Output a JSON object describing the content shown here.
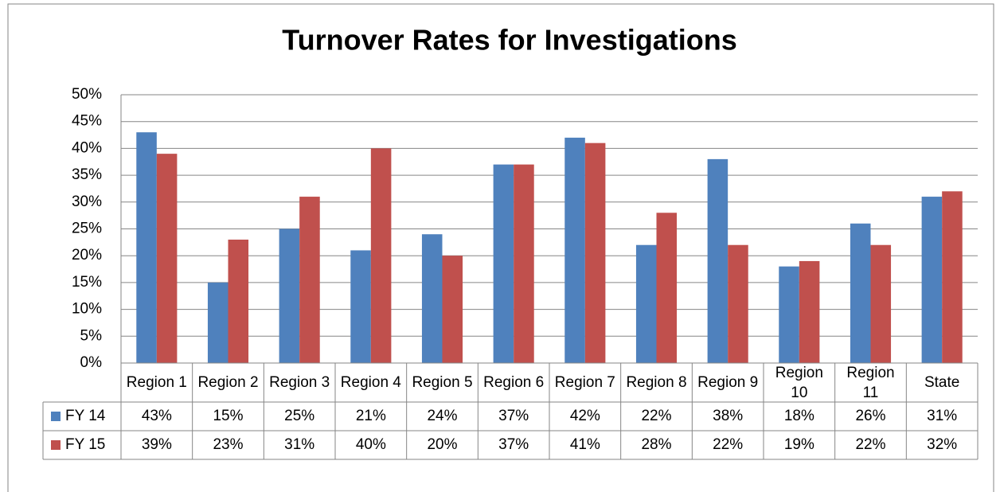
{
  "chart_data": {
    "type": "bar",
    "title": "Turnover Rates for Investigations",
    "categories": [
      "Region 1",
      "Region 2",
      "Region 3",
      "Region 4",
      "Region 5",
      "Region 6",
      "Region 7",
      "Region 8",
      "Region 9",
      "Region 10",
      "Region 11",
      "State"
    ],
    "series": [
      {
        "name": "FY 14",
        "color": "#4f81bd",
        "values": [
          43,
          15,
          25,
          21,
          24,
          37,
          42,
          22,
          38,
          18,
          26,
          31
        ],
        "value_labels": [
          "43%",
          "15%",
          "25%",
          "21%",
          "24%",
          "37%",
          "42%",
          "22%",
          "38%",
          "18%",
          "26%",
          "31%"
        ]
      },
      {
        "name": "FY 15",
        "color": "#c0504d",
        "values": [
          39,
          23,
          31,
          40,
          20,
          37,
          41,
          28,
          22,
          19,
          22,
          32
        ],
        "value_labels": [
          "39%",
          "23%",
          "31%",
          "40%",
          "20%",
          "37%",
          "41%",
          "28%",
          "22%",
          "19%",
          "22%",
          "32%"
        ]
      }
    ],
    "ylim": [
      0,
      50
    ],
    "yticks": [
      {
        "value": 0,
        "label": "0%"
      },
      {
        "value": 5,
        "label": "5%"
      },
      {
        "value": 10,
        "label": "10%"
      },
      {
        "value": 15,
        "label": "15%"
      },
      {
        "value": 20,
        "label": "20%"
      },
      {
        "value": 25,
        "label": "25%"
      },
      {
        "value": 30,
        "label": "30%"
      },
      {
        "value": 35,
        "label": "35%"
      },
      {
        "value": 40,
        "label": "40%"
      },
      {
        "value": 45,
        "label": "45%"
      },
      {
        "value": 50,
        "label": "50%"
      }
    ],
    "grid": true
  }
}
